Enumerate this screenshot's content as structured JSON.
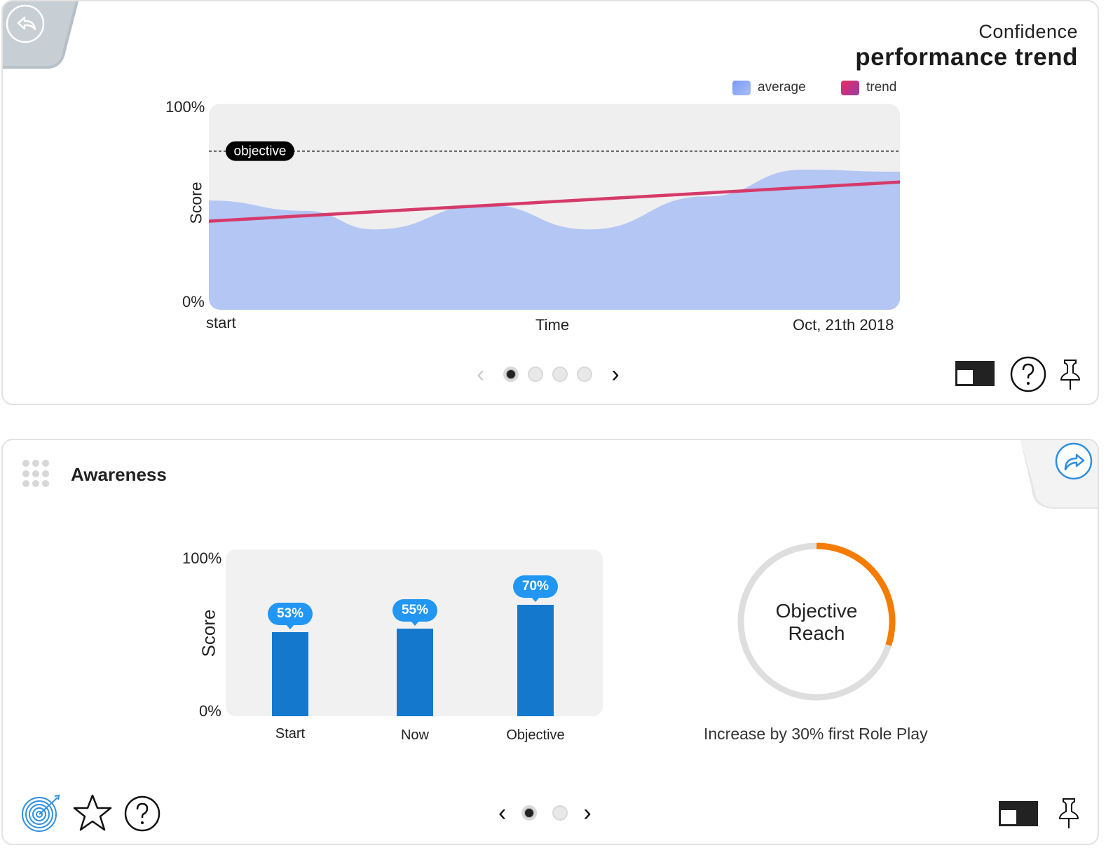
{
  "top_card": {
    "title_small": "Confidence",
    "title_big": "performance trend",
    "legend": [
      {
        "label": "average",
        "color": "#8aa4f5"
      },
      {
        "label": "trend",
        "color": "#d63a6a"
      }
    ],
    "objective_tag": "objective",
    "y_axis_label": "Score",
    "y_max_label": "100%",
    "y_min_label": "0%",
    "x_start_label": "start",
    "x_mid_label": "Time",
    "x_end_label": "Oct, 21th 2018",
    "pager": {
      "count": 4,
      "active": 0
    },
    "icons": [
      "back-icon",
      "layout-toggle-icon",
      "help-icon",
      "pin-icon"
    ]
  },
  "bottom_card": {
    "title": "Awareness",
    "y_axis_label": "Score",
    "y_max_label": "100%",
    "y_min_label": "0%",
    "ring_line1": "Objective",
    "ring_line2": "Reach",
    "ring_progress": 0.3,
    "ring_color": "#f57c00",
    "caption": "Increase by 30% first Role Play",
    "pager": {
      "count": 2,
      "active": 0
    },
    "icons": [
      "target-icon",
      "star-icon",
      "help-icon",
      "layout-toggle-icon",
      "pin-icon",
      "share-icon"
    ]
  },
  "chart_data": [
    {
      "type": "area",
      "title": "performance trend",
      "ylabel": "Score",
      "xlabel": "Time",
      "ylim": [
        0,
        100
      ],
      "x_ticks": [
        "start",
        "Oct, 21th 2018"
      ],
      "objective_line": 77,
      "series": [
        {
          "name": "average",
          "type": "area",
          "color": "#b3c6f4",
          "x": [
            0,
            0.14,
            0.24,
            0.4,
            0.55,
            0.72,
            0.86,
            1.0
          ],
          "values": [
            53,
            48,
            39,
            51,
            39,
            55,
            68,
            67
          ]
        },
        {
          "name": "trend",
          "type": "line",
          "color": "#d63a6a",
          "x": [
            0,
            1.0
          ],
          "values": [
            43,
            62
          ]
        }
      ],
      "grid": false,
      "legend": "top-right"
    },
    {
      "type": "bar",
      "ylabel": "Score",
      "ylim": [
        0,
        100
      ],
      "categories": [
        "Start",
        "Now",
        "Objective"
      ],
      "values": [
        53,
        55,
        70
      ],
      "value_labels": [
        "53%",
        "55%",
        "70%"
      ],
      "color": "#1479cc"
    }
  ]
}
